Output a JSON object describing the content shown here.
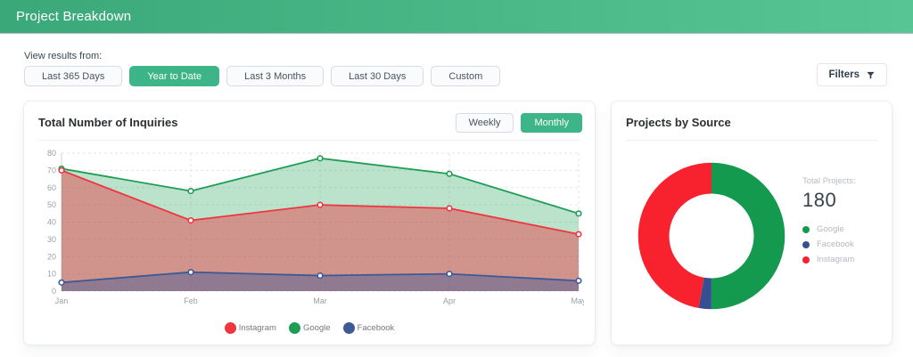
{
  "header": {
    "title": "Project Breakdown"
  },
  "toolbar": {
    "label": "View results from:",
    "chips": [
      {
        "label": "Last 365 Days",
        "active": false
      },
      {
        "label": "Year to Date",
        "active": true
      },
      {
        "label": "Last 3 Months",
        "active": false
      },
      {
        "label": "Last 30 Days",
        "active": false
      },
      {
        "label": "Custom",
        "active": false
      }
    ],
    "filters_button": {
      "label": "Filters",
      "icon": "funnel-icon"
    }
  },
  "inquiries_card": {
    "title": "Total Number of Inquiries",
    "toggle": [
      {
        "label": "Weekly",
        "active": false
      },
      {
        "label": "Monthly",
        "active": true
      }
    ]
  },
  "source_card": {
    "title": "Projects by Source",
    "total_label": "Total Projects:",
    "total_value": "180"
  },
  "colors": {
    "accent_green": "#3eb489",
    "header_gradient_start": "#3aa878",
    "header_gradient_end": "#58c694",
    "instagram_red": "#ee3640",
    "google_green": "#1d9e54",
    "facebook_blue": "#3d5a96",
    "donut_green": "#149a4e",
    "donut_blue": "#354f92",
    "donut_red": "#f8222f"
  },
  "chart_data": [
    {
      "type": "area",
      "title": "Total Number of Inquiries",
      "x": [
        "Jan",
        "Feb",
        "Mar",
        "Apr",
        "May"
      ],
      "series": [
        {
          "name": "Instagram",
          "color": "#ee3640",
          "fill_alpha": 0.45,
          "values": [
            70,
            41,
            50,
            48,
            33
          ]
        },
        {
          "name": "Google",
          "color": "#1d9e54",
          "fill_alpha": 0.3,
          "values": [
            71,
            58,
            77,
            68,
            45
          ]
        },
        {
          "name": "Facebook",
          "color": "#3d5a96",
          "fill_alpha": 0.45,
          "values": [
            5,
            11,
            9,
            10,
            6
          ]
        }
      ],
      "draw_order": [
        "Google",
        "Instagram",
        "Facebook"
      ],
      "legend_order": [
        "Instagram",
        "Google",
        "Facebook"
      ],
      "ylim": [
        0,
        80
      ],
      "ytick_step": 10,
      "grid": true,
      "legend_position": "bottom"
    },
    {
      "type": "pie",
      "donut": true,
      "title": "Projects by Source",
      "total": 180,
      "slices": [
        {
          "name": "Google",
          "value": 90,
          "color": "#149a4e"
        },
        {
          "name": "Facebook",
          "value": 5,
          "color": "#354f92"
        },
        {
          "name": "Instagram",
          "value": 85,
          "color": "#f8222f"
        }
      ],
      "legend_position": "right"
    }
  ]
}
